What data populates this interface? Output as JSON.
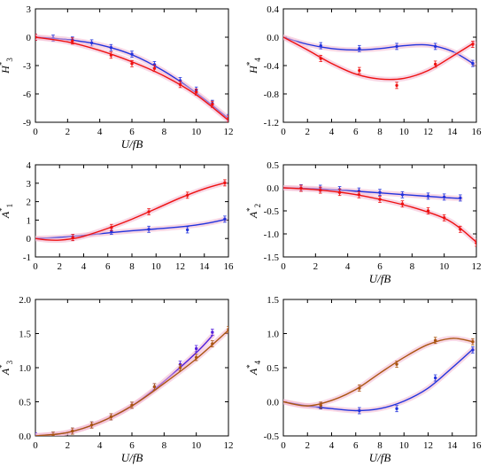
{
  "chart_data": [
    {
      "type": "scatter",
      "ylabel": "H*3",
      "xlabel": "U/fB",
      "xlim": [
        0,
        12
      ],
      "xticks": [
        0,
        2,
        4,
        6,
        8,
        10,
        12
      ],
      "ylim": [
        -9,
        3
      ],
      "yticks": [
        -9,
        -6,
        -3,
        0,
        3
      ],
      "series": [
        {
          "color": "#2233dd",
          "points": [
            [
              0,
              0
            ],
            [
              1.1,
              -0.1
            ],
            [
              2.3,
              -0.3
            ],
            [
              3.5,
              -0.6
            ],
            [
              4.7,
              -1.1
            ],
            [
              6.0,
              -1.8
            ],
            [
              7.4,
              -2.9
            ],
            [
              9.0,
              -4.6
            ],
            [
              10.0,
              -5.6
            ],
            [
              11.0,
              -7.0
            ],
            [
              12.0,
              -8.5
            ]
          ],
          "curve": [
            [
              0,
              0
            ],
            [
              2,
              -0.25
            ],
            [
              4,
              -0.8
            ],
            [
              6,
              -1.85
            ],
            [
              8,
              -3.6
            ],
            [
              10,
              -5.9
            ],
            [
              12,
              -8.6
            ]
          ]
        },
        {
          "color": "#ee1111",
          "points": [
            [
              0,
              0
            ],
            [
              2.3,
              -0.4
            ],
            [
              4.7,
              -1.9
            ],
            [
              6.0,
              -2.8
            ],
            [
              7.4,
              -3.3
            ],
            [
              9.0,
              -5.0
            ],
            [
              10.0,
              -5.8
            ],
            [
              11.0,
              -7.1
            ],
            [
              12.0,
              -8.6
            ]
          ],
          "curve": [
            [
              0,
              0
            ],
            [
              2,
              -0.5
            ],
            [
              4,
              -1.4
            ],
            [
              6,
              -2.6
            ],
            [
              8,
              -4.1
            ],
            [
              10,
              -6.1
            ],
            [
              12,
              -8.8
            ]
          ]
        }
      ]
    },
    {
      "type": "scatter",
      "ylabel": "H*4",
      "xlabel": "",
      "xlim": [
        0,
        16
      ],
      "xticks": [
        0,
        2,
        4,
        6,
        8,
        10,
        12,
        14,
        16
      ],
      "ylim": [
        -1.2,
        0.4
      ],
      "yticks": [
        -1.2,
        -0.8,
        -0.4,
        0,
        0.4
      ],
      "series": [
        {
          "color": "#2233dd",
          "points": [
            [
              3.1,
              -0.12
            ],
            [
              6.3,
              -0.16
            ],
            [
              9.4,
              -0.13
            ],
            [
              12.6,
              -0.13
            ],
            [
              15.7,
              -0.37
            ]
          ],
          "curve": [
            [
              0,
              0
            ],
            [
              2,
              -0.1
            ],
            [
              4,
              -0.16
            ],
            [
              6,
              -0.18
            ],
            [
              8,
              -0.16
            ],
            [
              10,
              -0.12
            ],
            [
              12,
              -0.11
            ],
            [
              14,
              -0.2
            ],
            [
              15.8,
              -0.38
            ]
          ]
        },
        {
          "color": "#ee1111",
          "points": [
            [
              3.1,
              -0.3
            ],
            [
              6.3,
              -0.47
            ],
            [
              9.4,
              -0.68
            ],
            [
              12.6,
              -0.38
            ],
            [
              15.7,
              -0.1
            ]
          ],
          "curve": [
            [
              0,
              0
            ],
            [
              2,
              -0.18
            ],
            [
              4,
              -0.37
            ],
            [
              6,
              -0.52
            ],
            [
              8,
              -0.59
            ],
            [
              10,
              -0.58
            ],
            [
              12,
              -0.47
            ],
            [
              14,
              -0.27
            ],
            [
              15.8,
              -0.08
            ]
          ]
        }
      ]
    },
    {
      "type": "scatter",
      "ylabel": "A*1",
      "xlabel": "",
      "xlim": [
        0,
        16
      ],
      "xticks": [
        0,
        2,
        4,
        6,
        8,
        10,
        12,
        14,
        16
      ],
      "ylim": [
        -1,
        4
      ],
      "yticks": [
        -1,
        0,
        1,
        2,
        3,
        4
      ],
      "series": [
        {
          "color": "#2233dd",
          "points": [
            [
              3.1,
              0.05
            ],
            [
              6.3,
              0.4
            ],
            [
              9.4,
              0.5
            ],
            [
              12.6,
              0.47
            ],
            [
              15.7,
              1.05
            ]
          ],
          "curve": [
            [
              0,
              0
            ],
            [
              2,
              0.06
            ],
            [
              4,
              0.17
            ],
            [
              6,
              0.3
            ],
            [
              8,
              0.42
            ],
            [
              10,
              0.52
            ],
            [
              12,
              0.63
            ],
            [
              14,
              0.8
            ],
            [
              15.7,
              1.03
            ]
          ]
        },
        {
          "color": "#ee1111",
          "points": [
            [
              3.1,
              0.05
            ],
            [
              6.3,
              0.6
            ],
            [
              9.4,
              1.45
            ],
            [
              12.6,
              2.35
            ],
            [
              15.7,
              3.02
            ]
          ],
          "curve": [
            [
              0,
              0
            ],
            [
              1,
              -0.08
            ],
            [
              2,
              -0.09
            ],
            [
              3,
              -0.02
            ],
            [
              4,
              0.12
            ],
            [
              6,
              0.55
            ],
            [
              8,
              1.05
            ],
            [
              10,
              1.62
            ],
            [
              12,
              2.2
            ],
            [
              14,
              2.7
            ],
            [
              15.7,
              3.02
            ]
          ]
        }
      ]
    },
    {
      "type": "scatter",
      "ylabel": "A*2",
      "xlabel": "U/fB",
      "xlim": [
        0,
        12
      ],
      "xticks": [
        0,
        2,
        4,
        6,
        8,
        10,
        12
      ],
      "ylim": [
        -1.5,
        0.5
      ],
      "yticks": [
        -1.5,
        -1.0,
        -0.5,
        0.0,
        0.5
      ],
      "series": [
        {
          "color": "#2233dd",
          "points": [
            [
              1.1,
              0.0
            ],
            [
              2.3,
              -0.01
            ],
            [
              3.5,
              -0.04
            ],
            [
              4.7,
              -0.07
            ],
            [
              6.0,
              -0.1
            ],
            [
              7.4,
              -0.15
            ],
            [
              9.0,
              -0.18
            ],
            [
              10.0,
              -0.2
            ],
            [
              11.0,
              -0.22
            ]
          ],
          "curve": [
            [
              0,
              0
            ],
            [
              2,
              -0.02
            ],
            [
              4,
              -0.06
            ],
            [
              6,
              -0.11
            ],
            [
              8,
              -0.16
            ],
            [
              10,
              -0.21
            ],
            [
              11,
              -0.23
            ]
          ]
        },
        {
          "color": "#ee1111",
          "points": [
            [
              1.1,
              -0.01
            ],
            [
              2.3,
              -0.05
            ],
            [
              3.5,
              -0.1
            ],
            [
              4.7,
              -0.15
            ],
            [
              6.0,
              -0.25
            ],
            [
              7.4,
              -0.35
            ],
            [
              9.0,
              -0.5
            ],
            [
              10.0,
              -0.65
            ],
            [
              11.0,
              -0.9
            ],
            [
              12.0,
              -1.2
            ]
          ],
          "curve": [
            [
              0,
              0
            ],
            [
              2,
              -0.04
            ],
            [
              4,
              -0.12
            ],
            [
              6,
              -0.25
            ],
            [
              8,
              -0.42
            ],
            [
              10,
              -0.66
            ],
            [
              11,
              -0.88
            ],
            [
              12,
              -1.18
            ]
          ]
        }
      ]
    },
    {
      "type": "scatter",
      "ylabel": "A*3",
      "xlabel": "U/fB",
      "xlim": [
        0,
        12
      ],
      "xticks": [
        0,
        2,
        4,
        6,
        8,
        10,
        12
      ],
      "ylim": [
        0,
        2.0
      ],
      "yticks": [
        0.0,
        0.5,
        1.0,
        1.5,
        2.0
      ],
      "series": [
        {
          "color": "#5522dd",
          "points": [
            [
              0,
              0
            ],
            [
              1.1,
              0.01
            ],
            [
              2.3,
              0.07
            ],
            [
              3.5,
              0.16
            ],
            [
              4.7,
              0.28
            ],
            [
              6.0,
              0.45
            ],
            [
              7.4,
              0.72
            ],
            [
              9.0,
              1.05
            ],
            [
              10.0,
              1.28
            ],
            [
              11.0,
              1.52
            ]
          ],
          "curve": [
            [
              0,
              0
            ],
            [
              2,
              0.05
            ],
            [
              4,
              0.2
            ],
            [
              6,
              0.44
            ],
            [
              8,
              0.8
            ],
            [
              10,
              1.22
            ],
            [
              11,
              1.47
            ]
          ]
        },
        {
          "color": "#aa5511",
          "points": [
            [
              1.1,
              0.01
            ],
            [
              2.3,
              0.07
            ],
            [
              3.5,
              0.16
            ],
            [
              4.7,
              0.28
            ],
            [
              6.0,
              0.45
            ],
            [
              7.4,
              0.72
            ],
            [
              9.0,
              1.0
            ],
            [
              10.0,
              1.15
            ],
            [
              11.0,
              1.35
            ],
            [
              12.0,
              1.56
            ]
          ],
          "curve": [
            [
              0,
              0
            ],
            [
              2,
              0.05
            ],
            [
              4,
              0.2
            ],
            [
              6,
              0.44
            ],
            [
              8,
              0.77
            ],
            [
              10,
              1.13
            ],
            [
              12,
              1.55
            ]
          ]
        }
      ]
    },
    {
      "type": "scatter",
      "ylabel": "A*4",
      "xlabel": "U/fB",
      "xlim": [
        0,
        16
      ],
      "xticks": [
        0,
        2,
        4,
        6,
        8,
        10,
        12,
        14,
        16
      ],
      "ylim": [
        -0.5,
        1.5
      ],
      "yticks": [
        -0.5,
        0.0,
        0.5,
        1.0,
        1.5
      ],
      "series": [
        {
          "color": "#2233dd",
          "points": [
            [
              3.1,
              -0.06
            ],
            [
              6.3,
              -0.13
            ],
            [
              9.4,
              -0.1
            ],
            [
              12.6,
              0.35
            ],
            [
              15.7,
              0.76
            ]
          ],
          "curve": [
            [
              0,
              0
            ],
            [
              2,
              -0.06
            ],
            [
              4,
              -0.1
            ],
            [
              6,
              -0.13
            ],
            [
              8,
              -0.1
            ],
            [
              10,
              0.01
            ],
            [
              12,
              0.2
            ],
            [
              14,
              0.5
            ],
            [
              15.7,
              0.77
            ]
          ]
        },
        {
          "color": "#aa5511",
          "points": [
            [
              3.1,
              -0.05
            ],
            [
              6.3,
              0.2
            ],
            [
              9.4,
              0.55
            ],
            [
              12.6,
              0.9
            ],
            [
              15.7,
              0.88
            ]
          ],
          "curve": [
            [
              0,
              0
            ],
            [
              2,
              -0.06
            ],
            [
              4,
              0.02
            ],
            [
              6,
              0.18
            ],
            [
              8,
              0.42
            ],
            [
              10,
              0.65
            ],
            [
              12,
              0.84
            ],
            [
              14,
              0.93
            ],
            [
              15.7,
              0.88
            ]
          ]
        }
      ]
    }
  ]
}
